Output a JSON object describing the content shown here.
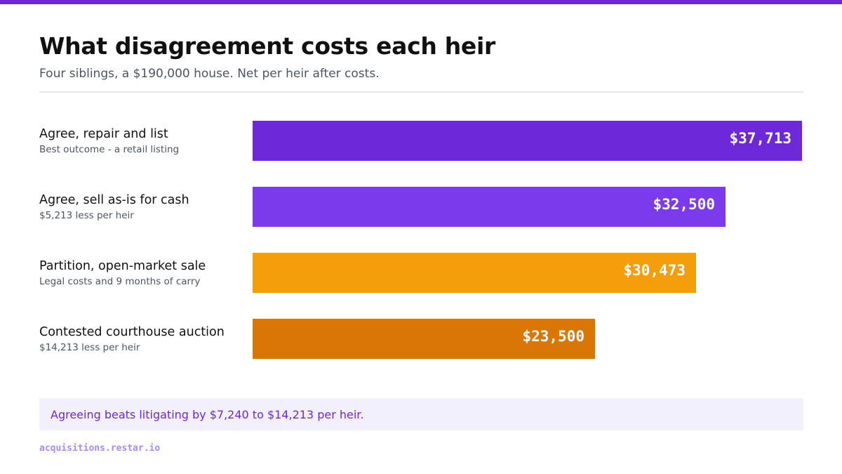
{
  "header": {
    "title": "What disagreement costs each heir",
    "subtitle": "Four siblings, a $190,000 house. Net per heir after costs."
  },
  "chart_data": {
    "type": "bar",
    "orientation": "horizontal",
    "categories": [
      "Agree, repair and list",
      "Agree, sell as-is for cash",
      "Partition, open-market sale",
      "Contested courthouse auction"
    ],
    "category_notes": [
      "Best outcome - a retail listing",
      "$5,213 less per heir",
      "Legal costs and 9 months of carry",
      "$14,213 less per heir"
    ],
    "values": [
      37713,
      32500,
      30473,
      23500
    ],
    "value_labels": [
      "$37,713",
      "$32,500",
      "$30,473",
      "$23,500"
    ],
    "colors": [
      "#6d28d9",
      "#7c3aed",
      "#f59e0b",
      "#d97706"
    ],
    "xlim": [
      0,
      40000
    ],
    "grid": false,
    "legend": "none"
  },
  "callout": {
    "text": "Agreeing beats litigating by $7,240 to $14,213 per heir."
  },
  "footer": {
    "source": "acquisitions.restar.io"
  }
}
